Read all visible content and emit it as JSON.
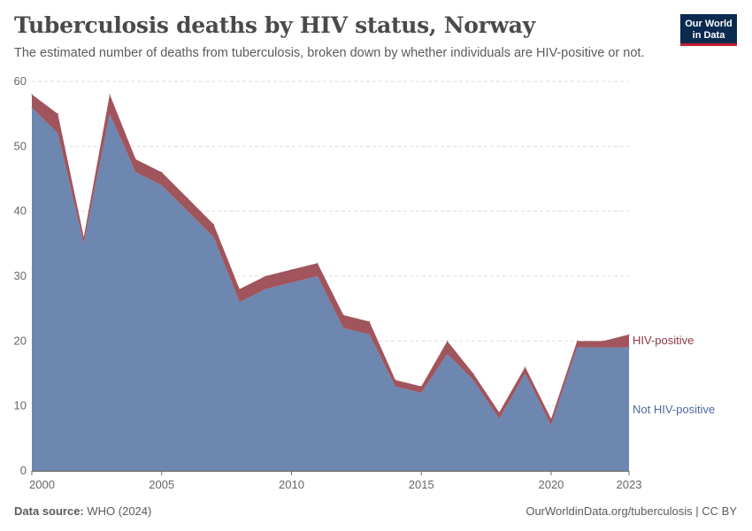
{
  "header": {
    "title": "Tuberculosis deaths by HIV status, Norway",
    "subtitle": "The estimated number of deaths from tuberculosis, broken down by whether individuals are HIV-positive or not.",
    "logo_line1": "Our World",
    "logo_line2": "in Data"
  },
  "footer": {
    "source_label": "Data source:",
    "source_value": "WHO (2024)",
    "url": "OurWorldinData.org/tuberculosis | CC BY"
  },
  "colors": {
    "not_hiv_positive": "#6d87b0",
    "hiv_positive": "#a0545c",
    "grid": "#dddddd"
  },
  "chart_data": {
    "type": "area",
    "stacked": true,
    "x": [
      2000,
      2001,
      2002,
      2003,
      2004,
      2005,
      2006,
      2007,
      2008,
      2009,
      2010,
      2011,
      2012,
      2013,
      2014,
      2015,
      2016,
      2017,
      2018,
      2019,
      2020,
      2021,
      2022,
      2023
    ],
    "series": [
      {
        "name": "Not HIV-positive",
        "values": [
          56,
          52,
          35,
          55,
          46,
          44,
          40,
          36,
          26,
          28,
          29,
          30,
          22,
          21,
          13,
          12,
          18,
          14,
          8,
          15,
          7,
          19,
          19,
          19
        ]
      },
      {
        "name": "HIV-positive",
        "values": [
          2,
          3,
          1,
          3,
          2,
          2,
          2,
          2,
          2,
          2,
          2,
          2,
          2,
          2,
          1,
          1,
          2,
          1,
          1,
          1,
          1,
          1,
          1,
          2
        ]
      }
    ],
    "xticks": [
      "2000",
      "2005",
      "2010",
      "2015",
      "2020",
      "2023"
    ],
    "yticks": [
      "0",
      "10",
      "20",
      "30",
      "40",
      "50",
      "60"
    ],
    "ylim": [
      0,
      60
    ],
    "xlim": [
      2000,
      2023
    ],
    "grid": "horizontal dashed",
    "legend": "labels at right end of series"
  }
}
